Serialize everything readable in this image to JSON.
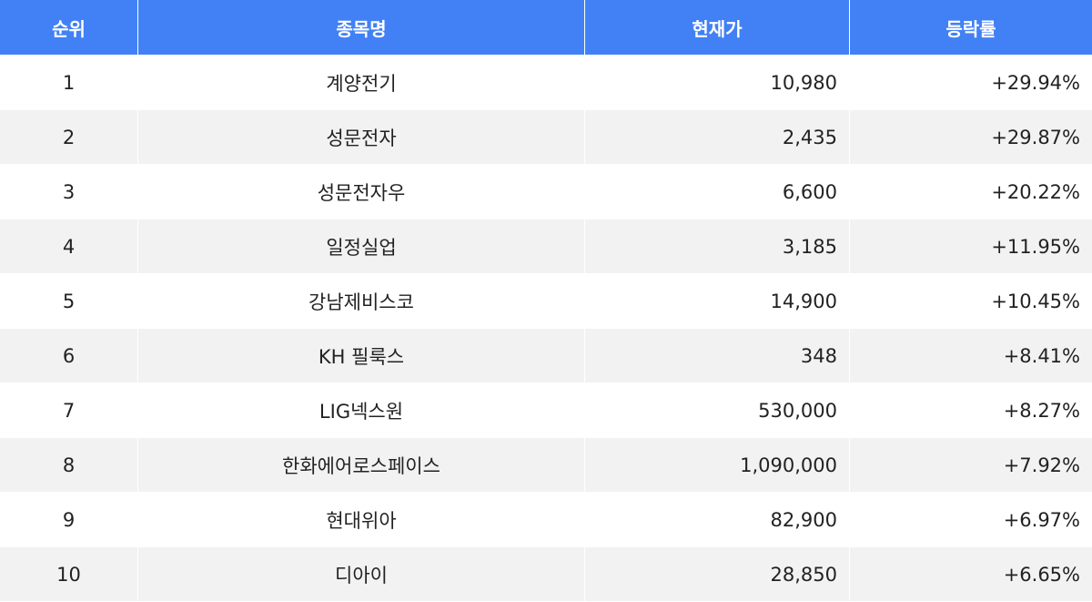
{
  "table": {
    "columns": [
      "순위",
      "종목명",
      "현재가",
      "등락률"
    ],
    "rows": [
      [
        "1",
        "계양전기",
        "10,980",
        "+29.94%"
      ],
      [
        "2",
        "성문전자",
        "2,435",
        "+29.87%"
      ],
      [
        "3",
        "성문전자우",
        "6,600",
        "+20.22%"
      ],
      [
        "4",
        "일정실업",
        "3,185",
        "+11.95%"
      ],
      [
        "5",
        "강남제비스코",
        "14,900",
        "+10.45%"
      ],
      [
        "6",
        "KH 필룩스",
        "348",
        "+8.41%"
      ],
      [
        "7",
        "LIG넥스원",
        "530,000",
        "+8.27%"
      ],
      [
        "8",
        "한화에어로스페이스",
        "1,090,000",
        "+7.92%"
      ],
      [
        "9",
        "현대위아",
        "82,900",
        "+6.97%"
      ],
      [
        "10",
        "디아이",
        "28,850",
        "+6.65%"
      ]
    ]
  }
}
